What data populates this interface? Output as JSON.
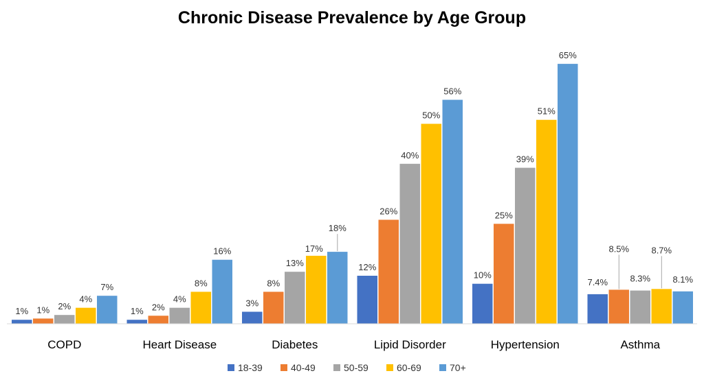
{
  "chart_data": {
    "type": "bar",
    "title": "Chronic Disease Prevalence by Age Group",
    "xlabel": "",
    "ylabel": "",
    "ylim": [
      0,
      70
    ],
    "grid": false,
    "legend_position": "bottom",
    "categories": [
      "COPD",
      "Heart Disease",
      "Diabetes",
      "Lipid Disorder",
      "Hypertension",
      "Asthma"
    ],
    "series": [
      {
        "name": "18-39",
        "color": "#4472C4",
        "values": [
          1,
          1,
          3,
          12,
          10,
          7.4
        ],
        "labels": [
          "1%",
          "1%",
          "3%",
          "12%",
          "10%",
          "7.4%"
        ]
      },
      {
        "name": "40-49",
        "color": "#ED7D31",
        "values": [
          1.3,
          2,
          8,
          26,
          25,
          8.5
        ],
        "labels": [
          "1%",
          "2%",
          "8%",
          "26%",
          "25%",
          "8.5%"
        ]
      },
      {
        "name": "50-59",
        "color": "#A5A5A5",
        "values": [
          2.2,
          4,
          13,
          40,
          39,
          8.3
        ],
        "labels": [
          "2%",
          "4%",
          "13%",
          "40%",
          "39%",
          "8.3%"
        ]
      },
      {
        "name": "60-69",
        "color": "#FFC000",
        "values": [
          4,
          8,
          17,
          50,
          51,
          8.7
        ],
        "labels": [
          "4%",
          "8%",
          "17%",
          "50%",
          "51%",
          "8.7%"
        ]
      },
      {
        "name": "70+",
        "color": "#5B9BD5",
        "values": [
          7,
          16,
          18,
          56,
          65,
          8.1
        ],
        "labels": [
          "7%",
          "16%",
          "18%",
          "56%",
          "65%",
          "8.1%"
        ]
      }
    ]
  }
}
